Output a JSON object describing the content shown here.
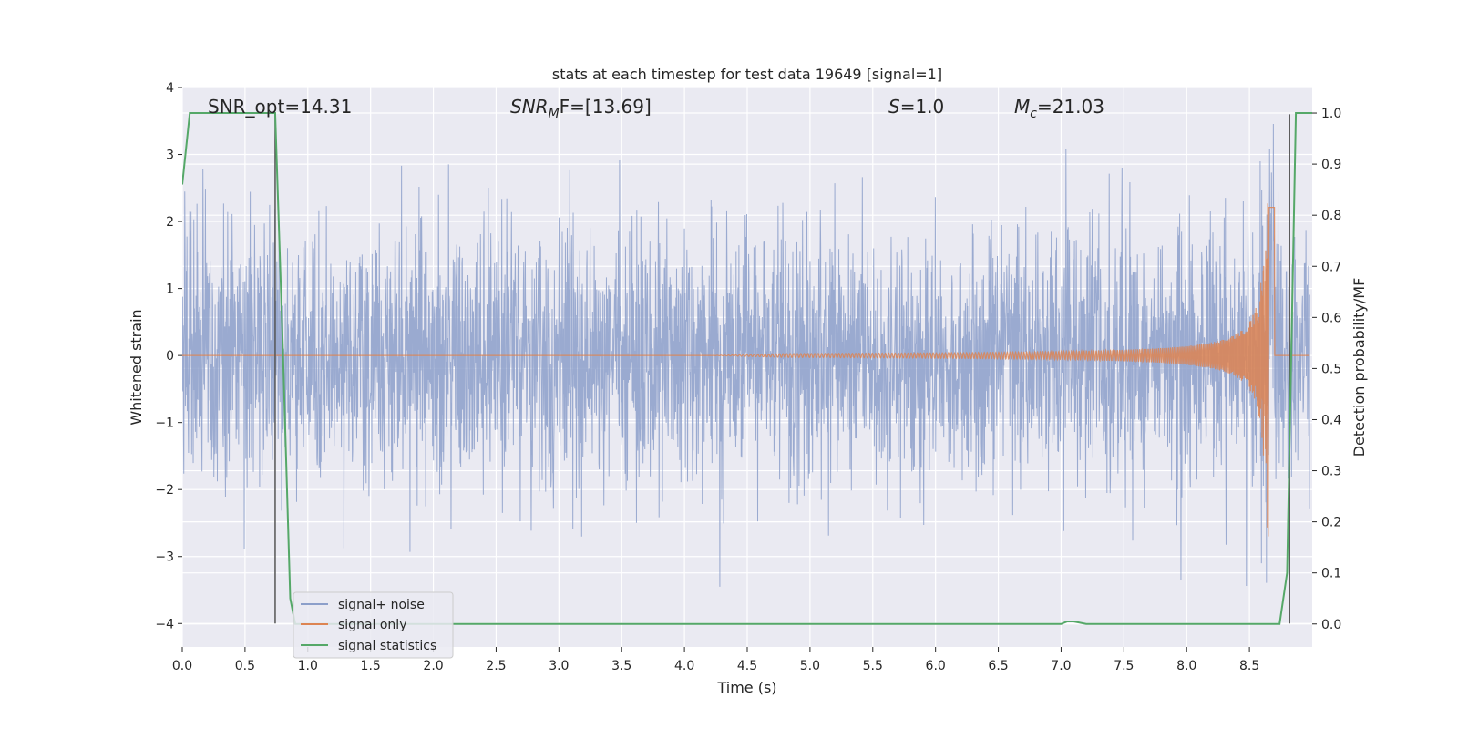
{
  "chart_data": {
    "type": "line",
    "title": "stats at each timestep for test data 19649 [signal=1]",
    "xlabel": "Time (s)",
    "ylabel": "Whitened strain",
    "y2label": "Detection probability/MF",
    "xlim": [
      0.0,
      9.0
    ],
    "ylim": [
      -4.35,
      4.0
    ],
    "y2lim": [
      -0.045,
      1.05
    ],
    "xticks": [
      0.0,
      0.5,
      1.0,
      1.5,
      2.0,
      2.5,
      3.0,
      3.5,
      4.0,
      4.5,
      5.0,
      5.5,
      6.0,
      6.5,
      7.0,
      7.5,
      8.0,
      8.5
    ],
    "xtick_labels": [
      "0.0",
      "0.5",
      "1.0",
      "1.5",
      "2.0",
      "2.5",
      "3.0",
      "3.5",
      "4.0",
      "4.5",
      "5.0",
      "5.5",
      "6.0",
      "6.5",
      "7.0",
      "7.5",
      "8.0",
      "8.5"
    ],
    "yticks": [
      4,
      3,
      2,
      1,
      0,
      -1,
      -2,
      -3,
      -4
    ],
    "ytick_labels": [
      "4",
      "3",
      "2",
      "1",
      "0",
      "−1",
      "−2",
      "−3",
      "−4"
    ],
    "y2ticks": [
      1.0,
      0.9,
      0.8,
      0.7,
      0.6,
      0.5,
      0.4,
      0.3,
      0.2,
      0.1,
      0.0
    ],
    "y2tick_labels": [
      "1.0",
      "0.9",
      "0.8",
      "0.7",
      "0.6",
      "0.5",
      "0.4",
      "0.3",
      "0.2",
      "0.1",
      "0.0"
    ],
    "grid": true,
    "legend_position": "lower-left",
    "annotations": {
      "snr_opt": "SNR_opt=14.31",
      "snr_mf_sym": "SNR",
      "snr_mf_sub": "M",
      "snr_mf_rest": "F=[13.69]",
      "s_sym": "S",
      "s_rest": "=1.0",
      "mc_sym": "M",
      "mc_sub": "c",
      "mc_rest": "=21.03"
    },
    "series": [
      {
        "name": "signal+ noise",
        "color": "#8c9fca",
        "axis": "left",
        "kind": "gaussian-noise-envelope",
        "time_range": [
          0.0,
          8.98
        ],
        "typical_range": [
          -1.8,
          1.8
        ],
        "extremes": [
          -3.45,
          3.62
        ]
      },
      {
        "name": "signal only",
        "color": "#dd8452",
        "axis": "left",
        "kind": "chirp",
        "onset_time": 4.2,
        "peak_time": 8.64,
        "merger_time": 8.7,
        "peak_amplitude": 2.7
      },
      {
        "name": "signal statistics",
        "color": "#55a868",
        "axis": "right",
        "x": [
          0.0,
          0.06,
          0.12,
          0.25,
          0.5,
          0.7,
          0.74,
          0.8,
          0.86,
          0.9,
          1.0,
          2.0,
          3.0,
          4.0,
          5.0,
          6.0,
          7.0,
          7.05,
          7.1,
          7.2,
          7.5,
          8.0,
          8.5,
          8.74,
          8.8,
          8.87,
          8.92,
          9.0
        ],
        "y": [
          0.86,
          1.0,
          1.0,
          1.0,
          1.0,
          1.0,
          1.0,
          0.55,
          0.05,
          0.0,
          0.0,
          0.0,
          0.0,
          0.0,
          0.0,
          0.0,
          0.0,
          0.005,
          0.005,
          0.0,
          0.0,
          0.0,
          0.0,
          0.0,
          0.1,
          1.0,
          1.0,
          1.0
        ]
      }
    ],
    "vertical_lines": [
      {
        "x": 0.74,
        "from": -4.0,
        "to": 3.6,
        "color": "#555555"
      },
      {
        "x": 8.82,
        "from": -4.0,
        "to": 3.6,
        "color": "#555555"
      }
    ]
  }
}
